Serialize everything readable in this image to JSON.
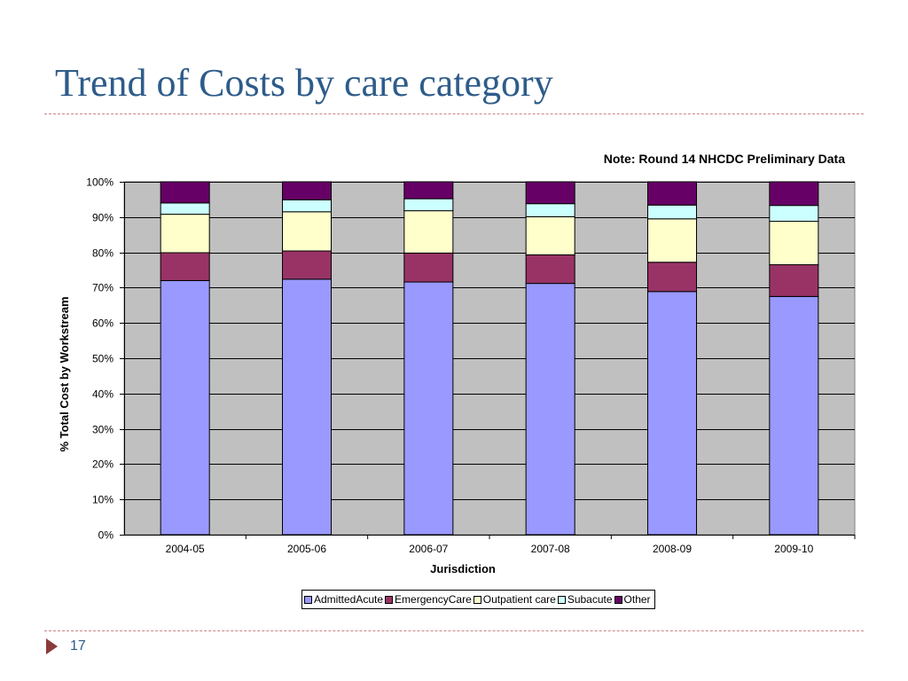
{
  "slide": {
    "title": "Trend of Costs by care category",
    "page_number": "17"
  },
  "chart_data": {
    "type": "bar",
    "stacked": true,
    "percent_stacked": true,
    "note": "Note: Round 14 NHCDC Preliminary Data",
    "xlabel": "Jurisdiction",
    "ylabel": "% Total Cost by Workstream",
    "categories": [
      "2004-05",
      "2005-06",
      "2006-07",
      "2007-08",
      "2008-09",
      "2009-10"
    ],
    "y_ticks": [
      "0%",
      "10%",
      "20%",
      "30%",
      "40%",
      "50%",
      "60%",
      "70%",
      "80%",
      "90%",
      "100%"
    ],
    "ylim": [
      0,
      100
    ],
    "grid": true,
    "legend_position": "bottom",
    "plot_background": "#c0c0c0",
    "series": [
      {
        "name": "AdmittedAcute",
        "color": "#9999ff",
        "values": [
          72.0,
          72.4,
          71.6,
          71.2,
          68.9,
          67.5
        ]
      },
      {
        "name": "EmergencyCare",
        "color": "#993366",
        "values": [
          7.9,
          8.0,
          8.2,
          8.1,
          8.3,
          9.0
        ]
      },
      {
        "name": "Outpatient care",
        "color": "#ffffcc",
        "values": [
          10.9,
          11.1,
          12.0,
          10.8,
          12.3,
          12.3
        ]
      },
      {
        "name": "Subacute",
        "color": "#ccffff",
        "values": [
          3.2,
          3.4,
          3.4,
          3.7,
          3.9,
          4.5
        ]
      },
      {
        "name": "Other",
        "color": "#660066",
        "values": [
          6.0,
          5.1,
          4.8,
          6.2,
          6.6,
          6.7
        ]
      }
    ]
  }
}
